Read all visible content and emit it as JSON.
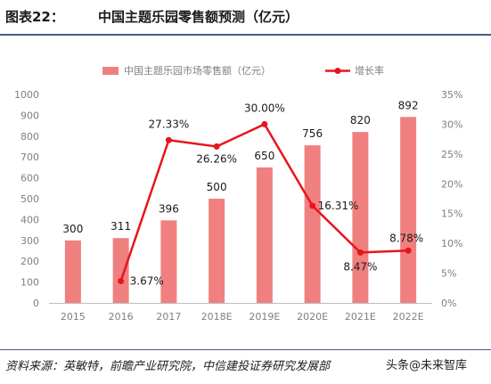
{
  "figure": {
    "label": "图表22：",
    "title": "中国主题乐园零售额预测（亿元）",
    "source": "资料来源：英敏特，前瞻产业研究院，中信建投证券研究发展部",
    "watermark": "头条@未来智库"
  },
  "chart_data": {
    "type": "bar",
    "categories": [
      "2015",
      "2016",
      "2017",
      "2018E",
      "2019E",
      "2020E",
      "2021E",
      "2022E"
    ],
    "series": [
      {
        "name": "中国主题乐园市场零售额（亿元）",
        "type": "bar",
        "axis": "left",
        "color": "#f08080",
        "values": [
          300,
          311,
          396,
          500,
          650,
          756,
          820,
          892
        ],
        "labels": [
          "300",
          "311",
          "396",
          "500",
          "650",
          "756",
          "820",
          "892"
        ]
      },
      {
        "name": "增长率",
        "type": "line",
        "axis": "right",
        "color": "#e8141c",
        "values": [
          null,
          3.67,
          27.33,
          26.26,
          30.0,
          16.31,
          8.47,
          8.78
        ],
        "labels": [
          "",
          "3.67%",
          "27.33%",
          "26.26%",
          "30.00%",
          "16.31%",
          "8.47%",
          "8.78%"
        ]
      }
    ],
    "y_left": {
      "min": 0,
      "max": 1000,
      "ticks": [
        "0",
        "100",
        "200",
        "300",
        "400",
        "500",
        "600",
        "700",
        "800",
        "900",
        "1000"
      ]
    },
    "y_right": {
      "min": 0,
      "max": 35,
      "ticks": [
        "0%",
        "5%",
        "10%",
        "15%",
        "20%",
        "25%",
        "30%",
        "35%"
      ]
    },
    "grid": false,
    "legend": "top-center"
  }
}
